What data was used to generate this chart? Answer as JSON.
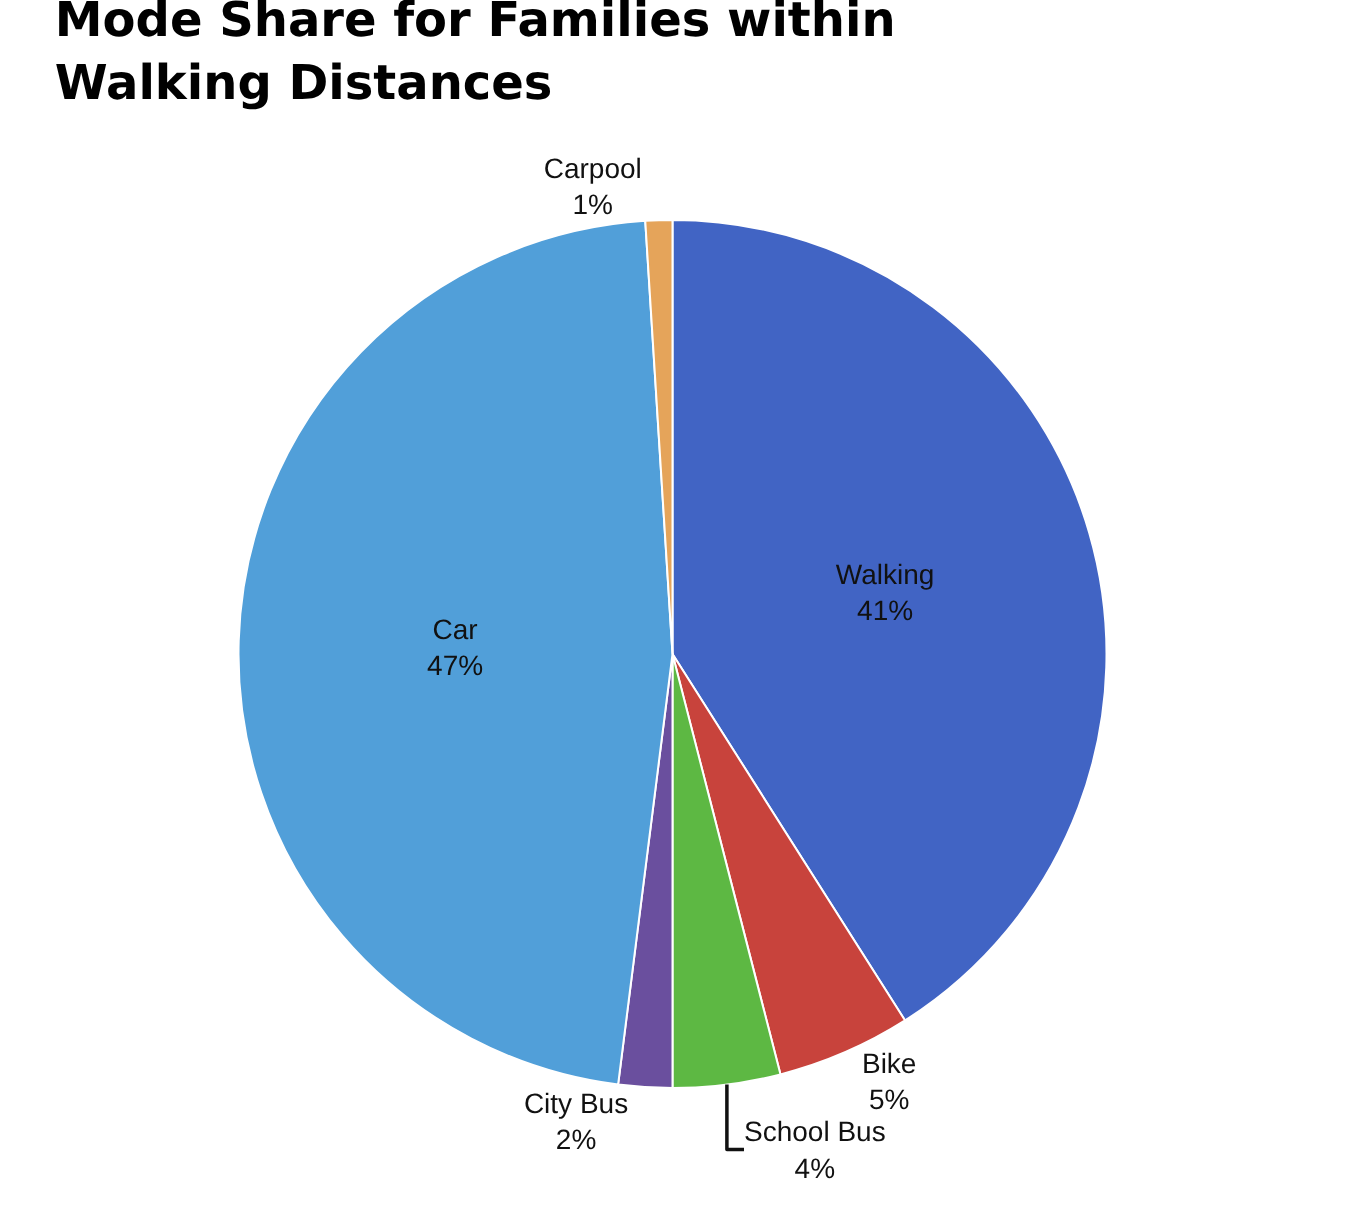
{
  "chart_data": {
    "type": "pie",
    "title": "Mode Share for Families within\nWalking Distances",
    "categories": [
      "Walking",
      "Bike",
      "School Bus",
      "City Bus",
      "Car",
      "Carpool"
    ],
    "values": [
      41,
      5,
      4,
      2,
      47,
      1
    ],
    "value_labels": [
      "41%",
      "5%",
      "4%",
      "2%",
      "47%",
      "1%"
    ],
    "colors": [
      "#4164c4",
      "#c8433c",
      "#5db843",
      "#6a4f9e",
      "#519fd9",
      "#e5a45a"
    ]
  }
}
